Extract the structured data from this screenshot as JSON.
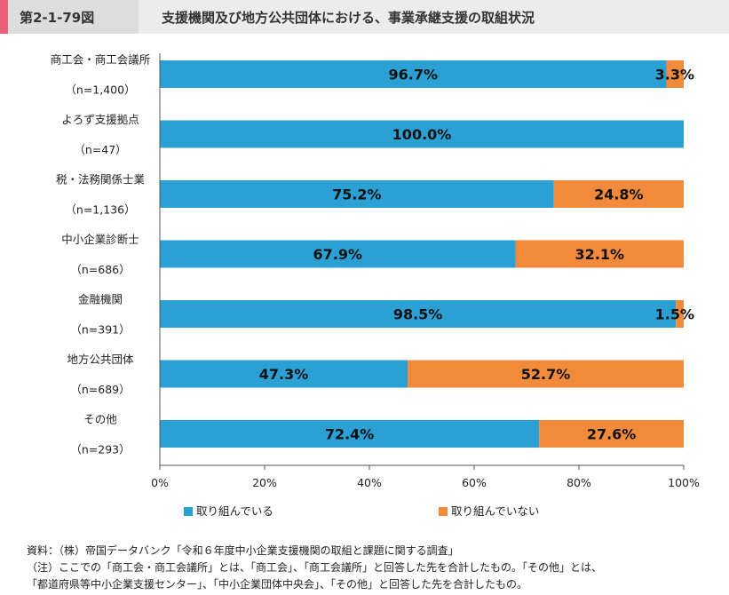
{
  "header": {
    "figure_no": "第2-1-79図",
    "title": "支援機関及び地方公共団体における、事業承継支援の取組状況"
  },
  "colors": {
    "series_1": "#2aa0d4",
    "series_2": "#f28a3c"
  },
  "chart_data": {
    "type": "bar",
    "orientation": "horizontal",
    "stacked": true,
    "categories": [
      {
        "name": "商工会・商工会議所",
        "n": "（n=1,400）"
      },
      {
        "name": "よろず支援拠点",
        "n": "（n=47）"
      },
      {
        "name": "税・法務関係士業",
        "n": "（n=1,136）"
      },
      {
        "name": "中小企業診断士",
        "n": "（n=686）"
      },
      {
        "name": "金融機関",
        "n": "（n=391）"
      },
      {
        "name": "地方公共団体",
        "n": "（n=689）"
      },
      {
        "name": "その他",
        "n": "（n=293）"
      }
    ],
    "series": [
      {
        "name": "取り組んでいる",
        "values": [
          96.7,
          100.0,
          75.2,
          67.9,
          98.5,
          47.3,
          72.4
        ],
        "labels": [
          "96.7%",
          "100.0%",
          "75.2%",
          "67.9%",
          "98.5%",
          "47.3%",
          "72.4%"
        ]
      },
      {
        "name": "取り組んでいない",
        "values": [
          3.3,
          0,
          24.8,
          32.1,
          1.5,
          52.7,
          27.6
        ],
        "labels": [
          "3.3%",
          "",
          "24.8%",
          "32.1%",
          "1.5%",
          "52.7%",
          "27.6%"
        ]
      }
    ],
    "x_ticks": [
      "0%",
      "20%",
      "40%",
      "60%",
      "80%",
      "100%"
    ],
    "xlim": [
      0,
      100
    ],
    "grid": false,
    "legend_position": "bottom"
  },
  "notes": {
    "source": "資料：（株）帝国データバンク「令和６年度中小企業支援機関の取組と課題に関する調査」",
    "note_1": "（注）ここでの「商工会・商工会議所」とは、「商工会」、「商工会議所」と回答した先を合計したもの。「その他」とは、",
    "note_2": "「都道府県等中小企業支援センター」、「中小企業団体中央会」、「その他」と回答した先を合計したもの。"
  }
}
